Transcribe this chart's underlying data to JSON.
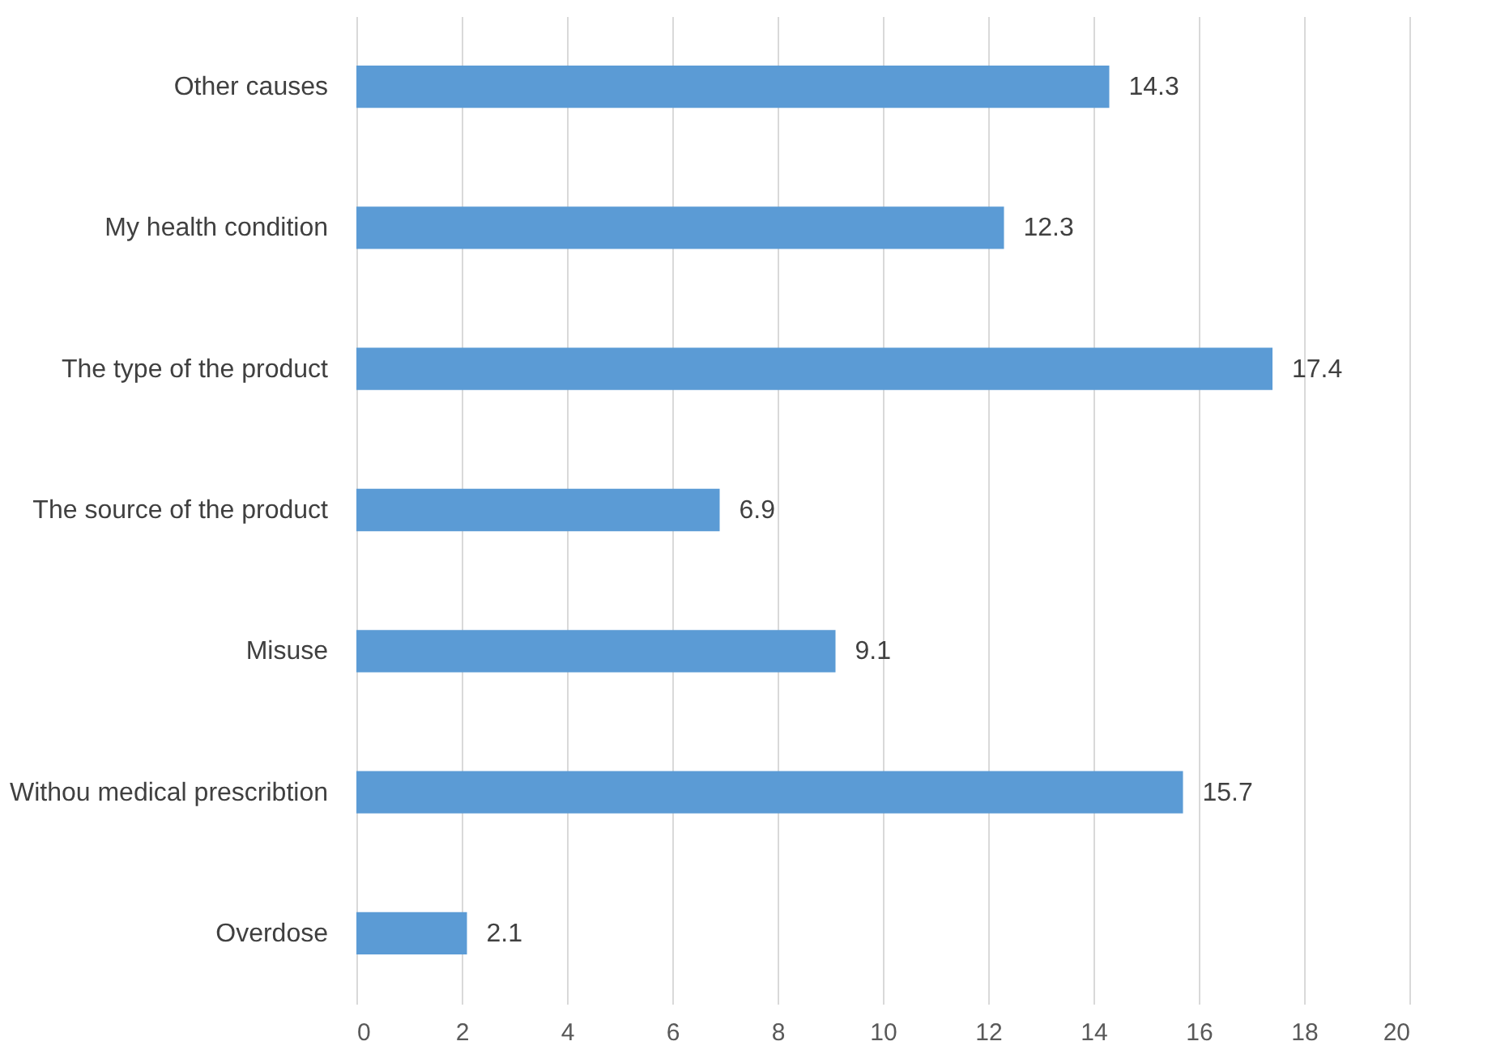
{
  "chart_data": {
    "type": "bar",
    "orientation": "horizontal",
    "categories": [
      "Other causes",
      "My health condition",
      "The  type of the product",
      "The source of the product",
      "Misuse",
      "Withou medical prescribtion",
      "Overdose"
    ],
    "values": [
      14.3,
      12.3,
      17.4,
      6.9,
      9.1,
      15.7,
      2.1
    ],
    "color": "#5b9bd5",
    "xlim": [
      0,
      20
    ],
    "xticks": [
      0,
      2,
      4,
      6,
      8,
      10,
      12,
      14,
      16,
      18,
      20
    ],
    "grid": "x",
    "data_labels": true
  }
}
